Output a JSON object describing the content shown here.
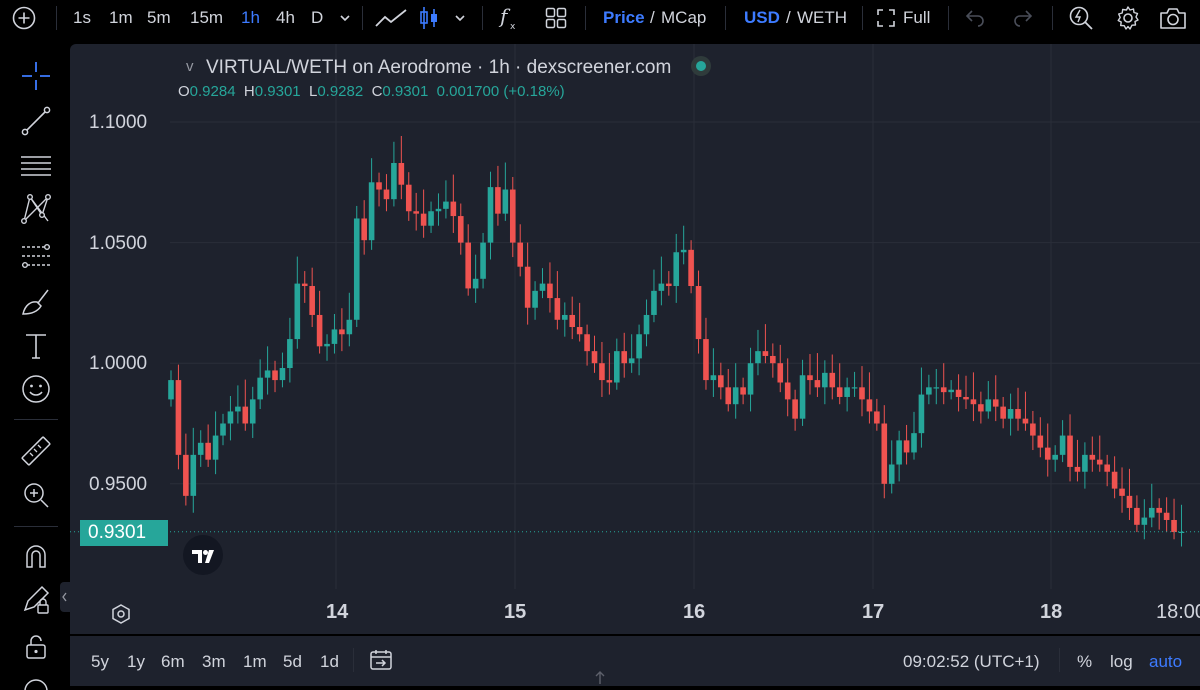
{
  "toolbar": {
    "intervals": [
      "1s",
      "1m",
      "5m",
      "15m",
      "1h",
      "4h",
      "D"
    ],
    "active_interval": "1h",
    "price_label": "Price",
    "price_sep": "/",
    "mcap_label": "MCap",
    "currency_usd": "USD",
    "currency_sep": "/",
    "currency_weth": "WETH",
    "full_label": "Full"
  },
  "legend": {
    "collapse_glyph": "v",
    "title": "VIRTUAL/WETH on Aerodrome · 1h · dexscreener.com",
    "o_label": "O",
    "o_value": "0.9284",
    "h_label": "H",
    "h_value": "0.9301",
    "l_label": "L",
    "l_value": "0.9282",
    "c_label": "C",
    "c_value": "0.9301",
    "change": "0.001700 (+0.18%)"
  },
  "price_axis": [
    "1.1000",
    "1.0500",
    "1.0000",
    "0.9500"
  ],
  "current_price": "0.9301",
  "time_axis": [
    "14",
    "15",
    "16",
    "17",
    "18",
    "18:00"
  ],
  "bottombar": {
    "ranges": [
      "5y",
      "1y",
      "6m",
      "3m",
      "1m",
      "5d",
      "1d"
    ],
    "time": "09:02:52 (UTC+1)",
    "percent": "%",
    "log": "log",
    "auto": "auto"
  },
  "colors": {
    "up": "#26a69a",
    "down": "#ef5350",
    "accent": "#3d7bff",
    "background": "#1e222d"
  },
  "chart_data": {
    "type": "candlestick",
    "pair": "VIRTUAL/WETH",
    "ylim": [
      0.915,
      1.115
    ],
    "x_tick_labels": [
      "14",
      "15",
      "16",
      "17",
      "18",
      "18:00"
    ],
    "closes": [
      0.993,
      0.962,
      0.945,
      0.962,
      0.967,
      0.96,
      0.97,
      0.975,
      0.98,
      0.982,
      0.975,
      0.985,
      0.994,
      0.997,
      0.993,
      0.998,
      1.01,
      1.033,
      1.032,
      1.02,
      1.007,
      1.008,
      1.014,
      1.012,
      1.018,
      1.06,
      1.051,
      1.075,
      1.072,
      1.068,
      1.083,
      1.074,
      1.063,
      1.062,
      1.057,
      1.063,
      1.064,
      1.067,
      1.061,
      1.05,
      1.031,
      1.035,
      1.05,
      1.073,
      1.062,
      1.072,
      1.05,
      1.04,
      1.023,
      1.03,
      1.033,
      1.027,
      1.018,
      1.02,
      1.015,
      1.012,
      1.005,
      1.0,
      0.993,
      0.992,
      1.005,
      1.0,
      1.002,
      1.012,
      1.02,
      1.03,
      1.033,
      1.032,
      1.046,
      1.047,
      1.032,
      1.01,
      0.993,
      0.995,
      0.99,
      0.983,
      0.99,
      0.987,
      1.0,
      1.005,
      1.003,
      1.0,
      0.992,
      0.985,
      0.977,
      0.995,
      0.993,
      0.99,
      0.996,
      0.99,
      0.986,
      0.99,
      0.99,
      0.985,
      0.98,
      0.975,
      0.95,
      0.958,
      0.968,
      0.963,
      0.971,
      0.987,
      0.99,
      0.99,
      0.988,
      0.989,
      0.986,
      0.985,
      0.983,
      0.98,
      0.985,
      0.982,
      0.977,
      0.981,
      0.977,
      0.975,
      0.97,
      0.965,
      0.96,
      0.962,
      0.97,
      0.957,
      0.955,
      0.962,
      0.96,
      0.958,
      0.955,
      0.948,
      0.945,
      0.94,
      0.933,
      0.936,
      0.94,
      0.938,
      0.935,
      0.93,
      0.9301
    ]
  }
}
